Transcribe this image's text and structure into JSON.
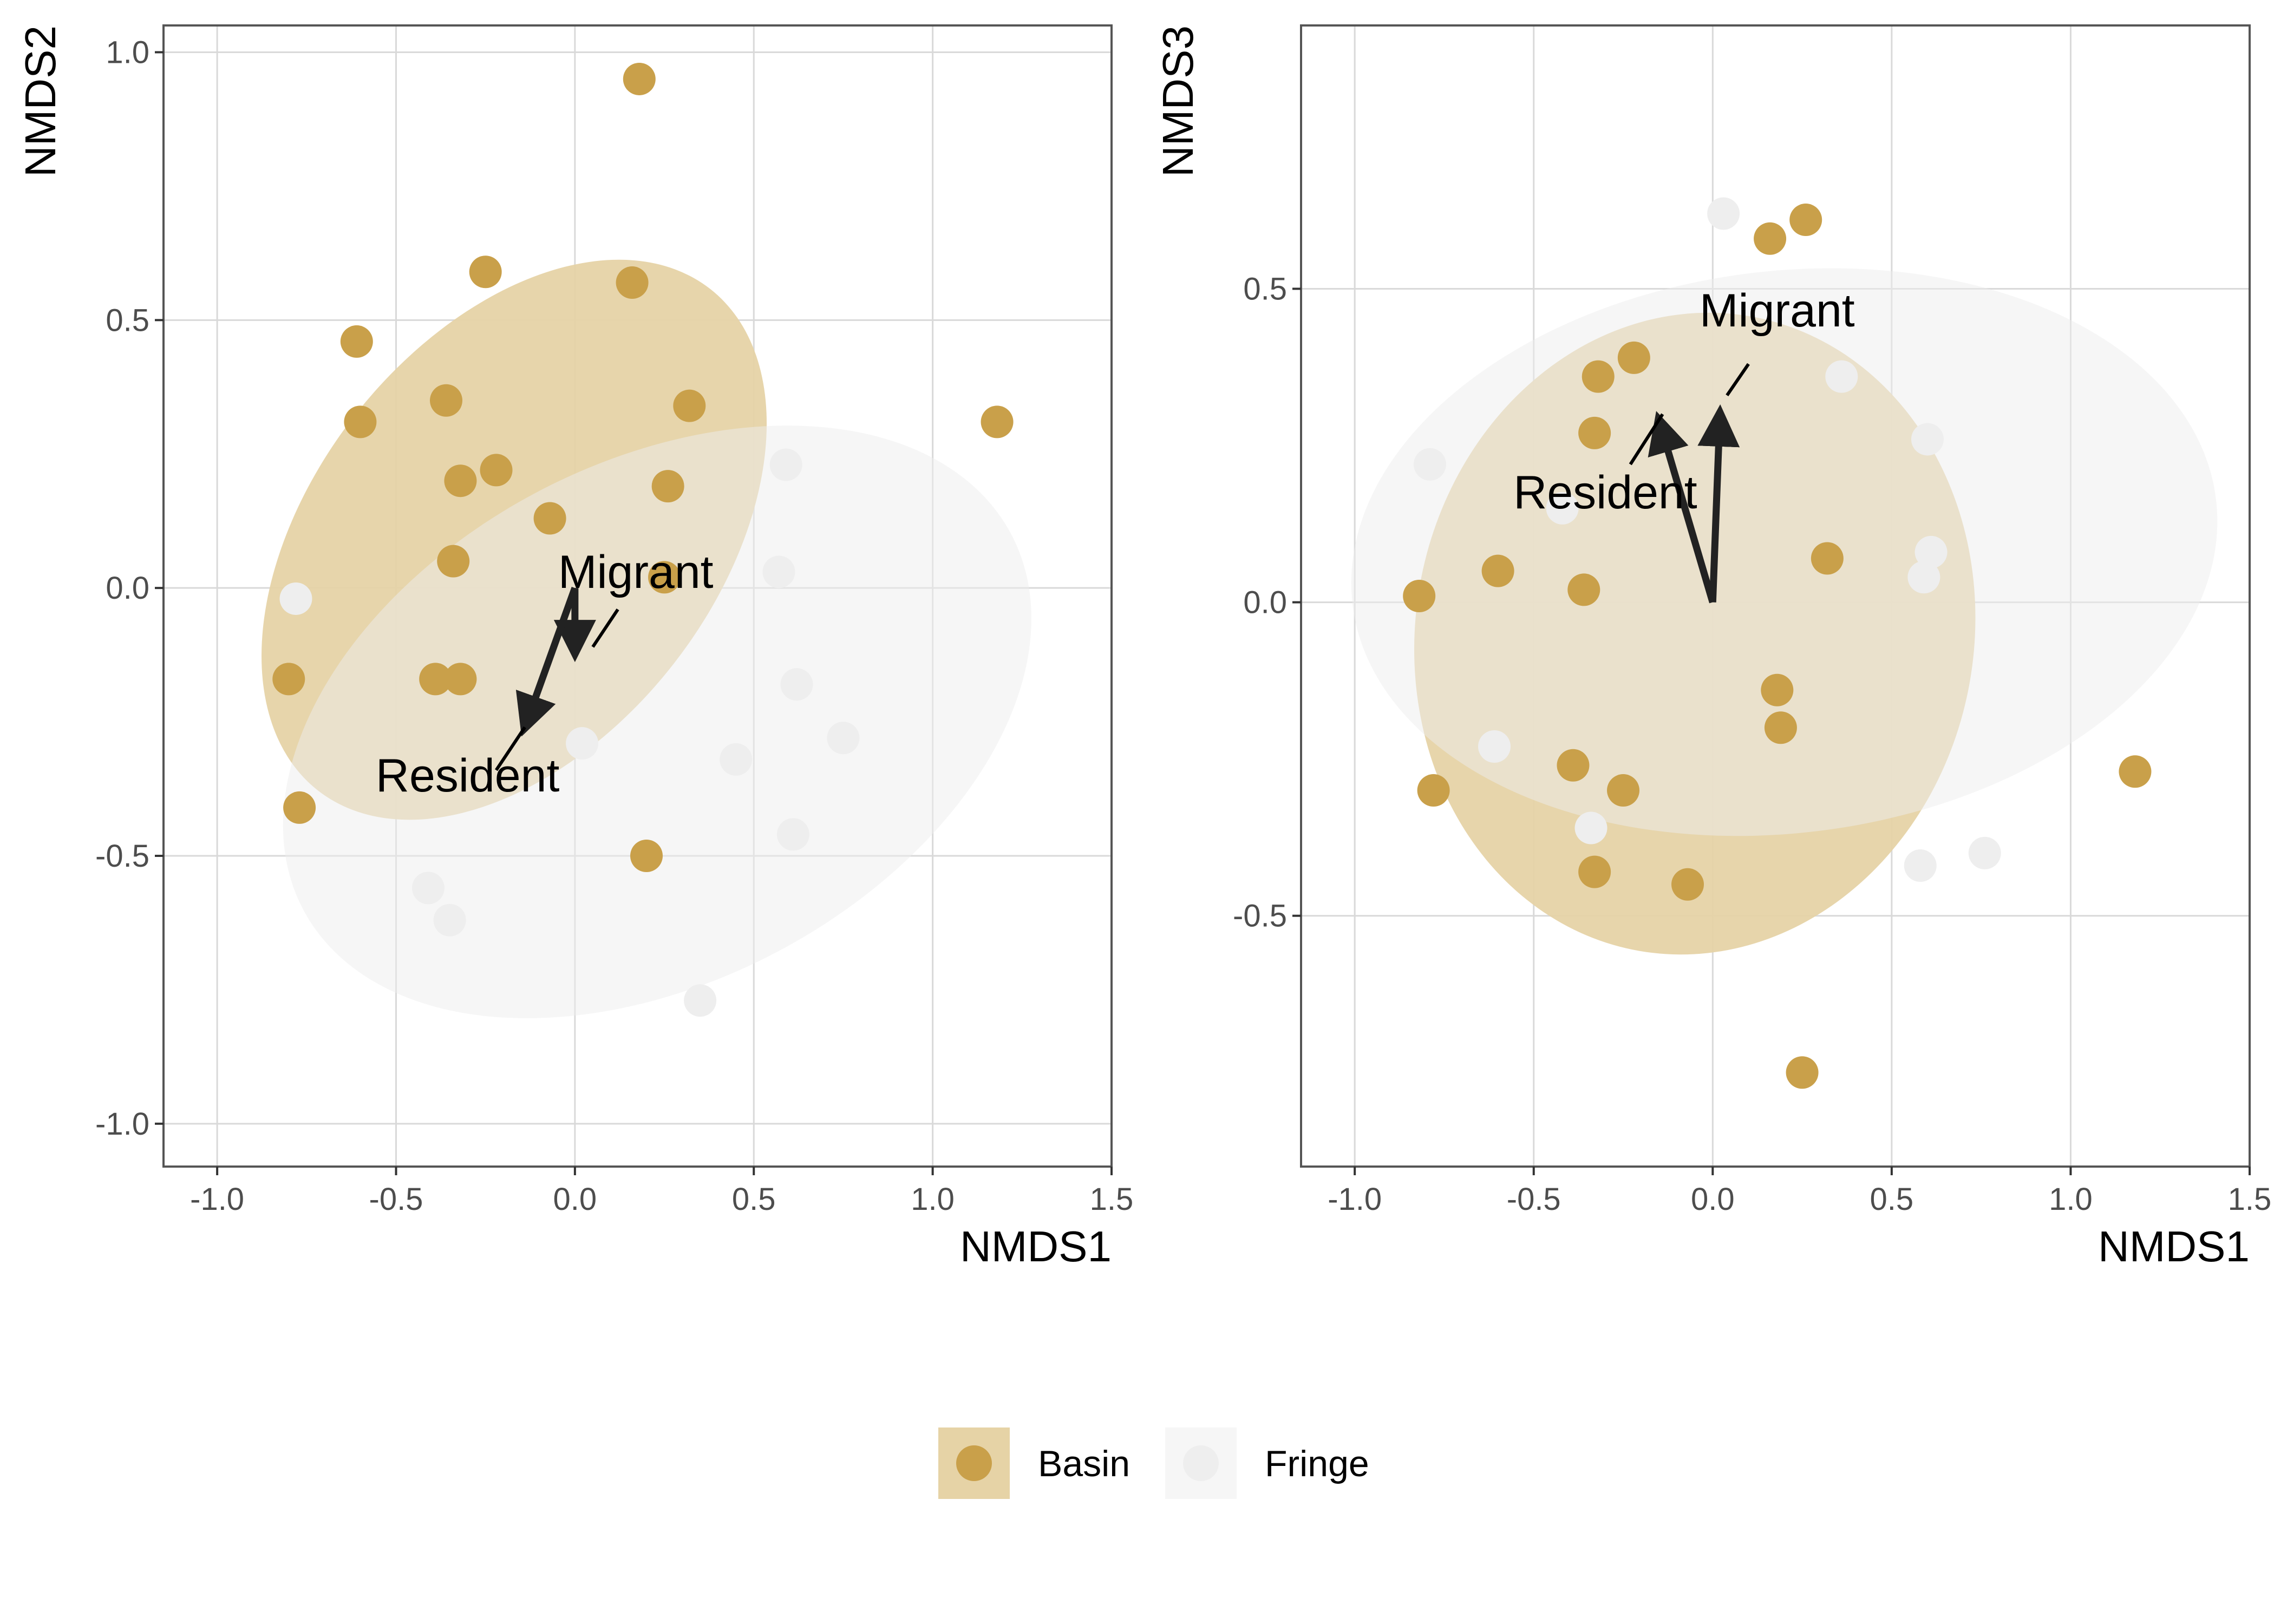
{
  "colors": {
    "basin": "#C9A04A",
    "fringe": "#EEEEEE",
    "basin_ellipse": "#E6D3A6",
    "fringe_ellipse": "#EEEEEE",
    "grid": "#D9D9D9",
    "panel_border": "#555555",
    "arrow": "#222222"
  },
  "legend": {
    "position": "bottom",
    "items": [
      {
        "key": "basin",
        "label": "Basin"
      },
      {
        "key": "fringe",
        "label": "Fringe"
      }
    ]
  },
  "chart_data": [
    {
      "type": "scatter",
      "xlabel": "NMDS1",
      "ylabel": "NMDS2",
      "xlim": [
        -1.15,
        1.5
      ],
      "ylim": [
        -1.08,
        1.05
      ],
      "xticks": [
        -1.0,
        -0.5,
        0.0,
        0.5,
        1.0,
        1.5
      ],
      "xtick_labels": [
        "-1.0",
        "-0.5",
        "0.0",
        "0.5",
        "1.0",
        "1.5"
      ],
      "yticks": [
        -1.0,
        -0.5,
        0.0,
        0.5,
        1.0
      ],
      "ytick_labels": [
        "-1.0",
        "-0.5",
        "0.0",
        "0.5",
        "1.0"
      ],
      "grid": true,
      "series": [
        {
          "group": "basin",
          "points": [
            [
              0.18,
              0.95
            ],
            [
              -0.25,
              0.59
            ],
            [
              0.16,
              0.57
            ],
            [
              -0.6,
              0.31
            ],
            [
              -0.36,
              0.35
            ],
            [
              1.18,
              0.31
            ],
            [
              0.2,
              -0.5
            ],
            [
              -0.32,
              0.2
            ],
            [
              -0.22,
              0.22
            ],
            [
              -0.07,
              0.13
            ],
            [
              -0.34,
              0.05
            ],
            [
              0.26,
              0.19
            ],
            [
              0.32,
              0.34
            ],
            [
              -0.8,
              -0.17
            ],
            [
              -0.39,
              -0.17
            ],
            [
              -0.32,
              -0.17
            ],
            [
              -0.77,
              -0.41
            ],
            [
              -0.61,
              0.46
            ],
            [
              0.25,
              0.02
            ]
          ]
        },
        {
          "group": "fringe",
          "points": [
            [
              -0.78,
              -0.02
            ],
            [
              0.57,
              0.03
            ],
            [
              0.59,
              0.23
            ],
            [
              0.62,
              -0.18
            ],
            [
              0.75,
              -0.28
            ],
            [
              0.45,
              -0.32
            ],
            [
              0.02,
              -0.29
            ],
            [
              0.61,
              -0.46
            ],
            [
              -0.41,
              -0.56
            ],
            [
              -0.35,
              -0.62
            ],
            [
              0.35,
              -0.77
            ]
          ]
        }
      ],
      "ellipses": [
        {
          "group": "basin",
          "center": [
            -0.17,
            0.09
          ],
          "width": 1.78,
          "height": 1.13,
          "angle_deg": 52
        },
        {
          "group": "fringe",
          "center": [
            0.23,
            -0.25
          ],
          "width": 2.24,
          "height": 1.45,
          "angle_deg": 28
        }
      ],
      "arrows": [
        {
          "label": "Migrant",
          "end": [
            0.0,
            -0.12
          ]
        },
        {
          "label": "Resident",
          "end": [
            -0.14,
            -0.26
          ]
        }
      ],
      "annotations": [
        {
          "text": "Migrant",
          "at": [
            0.17,
            0.0
          ],
          "line_from": [
            0.12,
            -0.04
          ],
          "line_to": [
            0.05,
            -0.11
          ]
        },
        {
          "text": "Resident",
          "at": [
            -0.3,
            -0.38
          ],
          "line_from": [
            -0.22,
            -0.34
          ],
          "line_to": [
            -0.14,
            -0.26
          ]
        }
      ]
    },
    {
      "type": "scatter",
      "xlabel": "NMDS1",
      "ylabel": "NMDS3",
      "xlim": [
        -1.15,
        1.5
      ],
      "ylim": [
        -0.9,
        0.92
      ],
      "xticks": [
        -1.0,
        -0.5,
        0.0,
        0.5,
        1.0,
        1.5
      ],
      "xtick_labels": [
        "-1.0",
        "-0.5",
        "0.0",
        "0.5",
        "1.0",
        "1.5"
      ],
      "yticks": [
        -0.5,
        0.0,
        0.5
      ],
      "ytick_labels": [
        "-0.5",
        "0.0",
        "0.5"
      ],
      "grid": true,
      "series": [
        {
          "group": "basin",
          "points": [
            [
              0.25,
              -0.75
            ],
            [
              0.16,
              0.58
            ],
            [
              0.26,
              0.61
            ],
            [
              -0.22,
              0.39
            ],
            [
              -0.32,
              0.36
            ],
            [
              -0.33,
              0.27
            ],
            [
              0.32,
              0.07
            ],
            [
              -0.82,
              0.01
            ],
            [
              -0.6,
              0.05
            ],
            [
              -0.36,
              0.02
            ],
            [
              0.18,
              -0.14
            ],
            [
              0.19,
              -0.2
            ],
            [
              -0.39,
              -0.26
            ],
            [
              -0.25,
              -0.3
            ],
            [
              -0.78,
              -0.3
            ],
            [
              -0.33,
              -0.43
            ],
            [
              -0.07,
              -0.45
            ],
            [
              1.18,
              -0.27
            ]
          ]
        },
        {
          "group": "fringe",
          "points": [
            [
              0.03,
              0.62
            ],
            [
              0.36,
              0.36
            ],
            [
              0.6,
              0.26
            ],
            [
              -0.79,
              0.22
            ],
            [
              0.61,
              0.08
            ],
            [
              0.59,
              0.04
            ],
            [
              -0.61,
              -0.23
            ],
            [
              -0.34,
              -0.36
            ],
            [
              0.58,
              -0.42
            ],
            [
              0.76,
              -0.4
            ],
            [
              -0.42,
              0.15
            ]
          ]
        }
      ],
      "ellipses": [
        {
          "group": "basin",
          "center": [
            -0.05,
            -0.05
          ],
          "width": 1.8,
          "height": 1.56,
          "angle_deg": 80
        },
        {
          "group": "fringe",
          "center": [
            0.2,
            0.08
          ],
          "width": 2.43,
          "height": 1.57,
          "angle_deg": 7
        }
      ],
      "arrows": [
        {
          "label": "Migrant",
          "end": [
            0.02,
            0.3
          ]
        },
        {
          "label": "Resident",
          "end": [
            -0.15,
            0.29
          ]
        }
      ],
      "annotations": [
        {
          "text": "Migrant",
          "at": [
            0.18,
            0.44
          ],
          "line_from": [
            0.1,
            0.38
          ],
          "line_to": [
            0.04,
            0.33
          ]
        },
        {
          "text": "Resident",
          "at": [
            -0.3,
            0.15
          ],
          "line_from": [
            -0.23,
            0.22
          ],
          "line_to": [
            -0.14,
            0.3
          ]
        }
      ]
    }
  ]
}
